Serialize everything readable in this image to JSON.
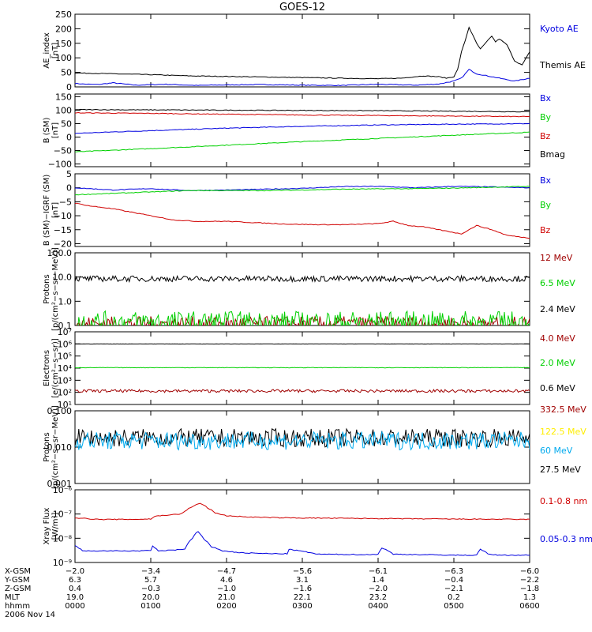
{
  "title": "GOES-12",
  "colors": {
    "black": "#000000",
    "red": "#d00000",
    "green": "#00d000",
    "blue": "#0000e0",
    "darkred": "#a00000",
    "yellow": "#ffee00",
    "cyan": "#00aaee"
  },
  "chart_data": [
    {
      "type": "line",
      "id": "ae",
      "ylabel": [
        "AE_index",
        "[nT]"
      ],
      "ylim": [
        0,
        250
      ],
      "yscale": "linear",
      "yticks": [
        {
          "v": 0,
          "l": "0"
        },
        {
          "v": 50,
          "l": "50"
        },
        {
          "v": 100,
          "l": "100"
        },
        {
          "v": 150,
          "l": "150"
        },
        {
          "v": 200,
          "l": "200"
        },
        {
          "v": 250,
          "l": "250"
        }
      ],
      "x_range_hours": [
        0,
        6
      ],
      "series": [
        {
          "name": "Kyoto AE",
          "color": "blue",
          "x": [
            0,
            0.1,
            0.3,
            0.5,
            0.8,
            1.2,
            1.6,
            2,
            2.5,
            3,
            3.5,
            4,
            4.5,
            4.8,
            5.0,
            5.1,
            5.2,
            5.3,
            5.4,
            5.6,
            5.8,
            6.0
          ],
          "y": [
            12,
            10,
            8,
            14,
            6,
            9,
            5,
            7,
            8,
            6,
            5,
            9,
            6,
            10,
            20,
            30,
            60,
            45,
            40,
            30,
            20,
            30
          ]
        },
        {
          "name": "Themis AE",
          "color": "black",
          "x": [
            0,
            0.5,
            1,
            1.5,
            2,
            2.5,
            3,
            3.5,
            4,
            4.3,
            4.6,
            4.8,
            4.9,
            5.0,
            5.05,
            5.1,
            5.15,
            5.2,
            5.3,
            5.35,
            5.4,
            5.5,
            5.55,
            5.6,
            5.7,
            5.8,
            5.9,
            6.0
          ],
          "y": [
            48,
            45,
            42,
            38,
            36,
            34,
            32,
            30,
            28,
            30,
            38,
            35,
            30,
            35,
            60,
            120,
            160,
            205,
            150,
            130,
            145,
            175,
            155,
            165,
            145,
            90,
            75,
            120
          ]
        }
      ],
      "labels": [
        {
          "text": "Kyoto AE",
          "color": "blue"
        },
        {
          "text": "Themis AE",
          "color": "black"
        }
      ]
    },
    {
      "type": "line",
      "id": "bsm",
      "ylabel": [
        "B (SM)",
        "[nT]"
      ],
      "ylim": [
        -110,
        160
      ],
      "yscale": "linear",
      "yticks": [
        {
          "v": -100,
          "l": "−100"
        },
        {
          "v": -50,
          "l": "−50"
        },
        {
          "v": 0,
          "l": "0"
        },
        {
          "v": 50,
          "l": "50"
        },
        {
          "v": 100,
          "l": "100"
        },
        {
          "v": 150,
          "l": "150"
        }
      ],
      "series": [
        {
          "name": "Bx",
          "color": "blue",
          "x": [
            0,
            1,
            2,
            3,
            4,
            5,
            6
          ],
          "y": [
            14,
            24,
            33,
            40,
            45,
            48,
            50
          ]
        },
        {
          "name": "By",
          "color": "green",
          "x": [
            0,
            1,
            2,
            3,
            4,
            5,
            6
          ],
          "y": [
            -55,
            -43,
            -30,
            -17,
            -5,
            7,
            18
          ]
        },
        {
          "name": "Bz",
          "color": "red",
          "x": [
            0,
            1,
            2,
            3,
            4,
            5,
            6
          ],
          "y": [
            90,
            88,
            85,
            82,
            80,
            78,
            76
          ]
        },
        {
          "name": "Bmag",
          "color": "black",
          "x": [
            0,
            1,
            2,
            3,
            4,
            5,
            6
          ],
          "y": [
            102,
            101,
            100,
            99,
            98,
            96,
            94
          ]
        }
      ],
      "labels": [
        {
          "text": "Bx",
          "color": "blue"
        },
        {
          "text": "By",
          "color": "green"
        },
        {
          "text": "Bz",
          "color": "red"
        },
        {
          "text": "Bmag",
          "color": "black"
        }
      ]
    },
    {
      "type": "line",
      "id": "bdiff",
      "ylabel": [
        "B (SM)−IGRF (SM)",
        "[nT]"
      ],
      "ylim": [
        -21,
        5
      ],
      "yscale": "linear",
      "yticks": [
        {
          "v": -20,
          "l": "−20"
        },
        {
          "v": -15,
          "l": "−15"
        },
        {
          "v": -10,
          "l": "−10"
        },
        {
          "v": -5,
          "l": "−5"
        },
        {
          "v": 0,
          "l": "0"
        },
        {
          "v": 5,
          "l": "5"
        }
      ],
      "series": [
        {
          "name": "Bx",
          "color": "blue",
          "x": [
            0,
            0.5,
            1,
            1.5,
            2,
            2.5,
            3,
            3.5,
            4,
            4.5,
            5,
            5.5,
            6
          ],
          "y": [
            0,
            -0.8,
            -0.3,
            -1,
            -0.8,
            -0.5,
            -0.2,
            0.4,
            0.5,
            0,
            0.5,
            0.3,
            0
          ]
        },
        {
          "name": "By",
          "color": "green",
          "x": [
            0,
            0.5,
            1,
            1.5,
            2,
            2.5,
            3,
            3.5,
            4,
            4.5,
            5,
            5.5,
            6
          ],
          "y": [
            -2.5,
            -2,
            -1.5,
            -1,
            -1,
            -1,
            -0.8,
            -0.5,
            -0.4,
            -0.3,
            -0.1,
            0.2,
            0.5
          ]
        },
        {
          "name": "Bz",
          "color": "red",
          "x": [
            0,
            0.2,
            0.5,
            0.8,
            1,
            1.3,
            1.6,
            2,
            2.4,
            2.8,
            3.2,
            3.6,
            4,
            4.2,
            4.4,
            4.6,
            4.9,
            5.1,
            5.3,
            5.5,
            5.7,
            6
          ],
          "y": [
            -5.5,
            -6.5,
            -7.5,
            -9,
            -10,
            -11.5,
            -12,
            -12,
            -12.5,
            -13,
            -13.2,
            -13.2,
            -12.8,
            -12,
            -13.5,
            -14,
            -15.5,
            -16.5,
            -13.5,
            -15,
            -17,
            -18
          ]
        }
      ],
      "labels": [
        {
          "text": "Bx",
          "color": "blue"
        },
        {
          "text": "By",
          "color": "green"
        },
        {
          "text": "Bz",
          "color": "red"
        }
      ]
    },
    {
      "type": "line",
      "id": "protons1",
      "ylabel": [
        "Protons",
        "[p/(cm²−s−sr−MeV)]"
      ],
      "ylim": [
        0.1,
        100
      ],
      "yscale": "log",
      "yticks": [
        {
          "v": 0.1,
          "l": "0.1"
        },
        {
          "v": 1,
          "l": "1.0"
        },
        {
          "v": 10,
          "l": "10.0"
        },
        {
          "v": 100,
          "l": "100.0"
        }
      ],
      "series": [
        {
          "name": "12 MeV",
          "color": "darkred",
          "level": 0.12,
          "noise": 0.3
        },
        {
          "name": "6.5 MeV",
          "color": "green",
          "level": 0.14,
          "noise": 0.45
        },
        {
          "name": "2.4 MeV",
          "color": "black",
          "level": 8.5,
          "noise": 0.12
        }
      ],
      "labels": [
        {
          "text": "12 MeV",
          "color": "darkred"
        },
        {
          "text": "6.5 MeV",
          "color": "green"
        },
        {
          "text": "2.4 MeV",
          "color": "black"
        }
      ]
    },
    {
      "type": "line",
      "id": "electrons",
      "ylabel": [
        "Electrons",
        "[e/(cm²−s−sr)]"
      ],
      "ylim": [
        10,
        10000000
      ],
      "yscale": "log",
      "yticks": [
        {
          "v": 10,
          "l": "10¹"
        },
        {
          "v": 100,
          "l": "10²"
        },
        {
          "v": 1000,
          "l": "10³"
        },
        {
          "v": 10000,
          "l": "10⁴"
        },
        {
          "v": 100000,
          "l": "10⁵"
        },
        {
          "v": 1000000,
          "l": "10⁶"
        },
        {
          "v": 10000000,
          "l": "10⁷"
        }
      ],
      "series": [
        {
          "name": "4.0 MeV",
          "color": "darkred",
          "level": 130,
          "noise": 0.12
        },
        {
          "name": "2.0 MeV",
          "color": "green",
          "level": 11000,
          "noise": 0.02
        },
        {
          "name": "0.6 MeV",
          "color": "black",
          "level": 1000000,
          "noise": 0.01
        }
      ],
      "labels": [
        {
          "text": "4.0 MeV",
          "color": "darkred"
        },
        {
          "text": "2.0 MeV",
          "color": "green"
        },
        {
          "text": "0.6 MeV",
          "color": "black"
        }
      ]
    },
    {
      "type": "line",
      "id": "protons2",
      "ylabel": [
        "Protons",
        "[p/(cm²−s−sr−MeV)]"
      ],
      "ylim": [
        0.001,
        0.1
      ],
      "yscale": "log",
      "yticks": [
        {
          "v": 0.001,
          "l": "0.001"
        },
        {
          "v": 0.01,
          "l": "0.010"
        },
        {
          "v": 0.1,
          "l": "0.100"
        }
      ],
      "series": [
        {
          "name": "27.5 MeV",
          "color": "black",
          "level": 0.018,
          "noise": 0.25
        },
        {
          "name": "60 MeV",
          "color": "cyan",
          "level": 0.015,
          "noise": 0.25
        }
      ],
      "labels": [
        {
          "text": "332.5 MeV",
          "color": "darkred"
        },
        {
          "text": "122.5 MeV",
          "color": "yellow"
        },
        {
          "text": "60 MeV",
          "color": "cyan"
        },
        {
          "text": "27.5 MeV",
          "color": "black"
        }
      ]
    },
    {
      "type": "line",
      "id": "xray",
      "ylabel": [
        "Xray  Flux",
        "[W/m²]"
      ],
      "ylim": [
        1e-09,
        1e-06
      ],
      "yscale": "log",
      "yticks": [
        {
          "v": 1e-09,
          "l": "10⁻⁹"
        },
        {
          "v": 1e-08,
          "l": "10⁻⁸"
        },
        {
          "v": 1e-07,
          "l": "10⁻⁷"
        },
        {
          "v": 1e-06,
          "l": "10⁻⁶"
        }
      ],
      "series": [
        {
          "name": "0.1-0.8 nm",
          "color": "red",
          "x": [
            0,
            0.3,
            0.7,
            1.0,
            1.05,
            1.2,
            1.4,
            1.55,
            1.65,
            1.75,
            1.85,
            2.0,
            2.3,
            2.7,
            3.2,
            4,
            5,
            6
          ],
          "y": [
            7e-08,
            6e-08,
            6e-08,
            6.2e-08,
            8e-08,
            9e-08,
            1e-07,
            2e-07,
            2.8e-07,
            1.8e-07,
            1.1e-07,
            8.5e-08,
            7.5e-08,
            7e-08,
            6.8e-08,
            6.5e-08,
            6.2e-08,
            6e-08
          ]
        },
        {
          "name": "0.05-0.3 nm",
          "color": "blue",
          "x": [
            0,
            0.1,
            0.3,
            0.9,
            1.0,
            1.02,
            1.05,
            1.1,
            1.45,
            1.55,
            1.62,
            1.7,
            1.8,
            1.95,
            2.2,
            2.6,
            2.8,
            2.82,
            3.2,
            3.9,
            4.0,
            4.05,
            4.2,
            5.0,
            5.3,
            5.35,
            5.45,
            5.6,
            6
          ],
          "y": [
            5e-09,
            3e-09,
            3e-09,
            3e-09,
            3.2e-09,
            5e-09,
            4e-09,
            3e-09,
            3.5e-09,
            1e-08,
            1.9e-08,
            9e-09,
            4.5e-09,
            3e-09,
            2.5e-09,
            2.3e-09,
            2.3e-09,
            3.5e-09,
            2.2e-09,
            2.1e-09,
            2.2e-09,
            4e-09,
            2.2e-09,
            2e-09,
            2e-09,
            3.6e-09,
            2.2e-09,
            2e-09,
            2e-09
          ]
        }
      ],
      "labels": [
        {
          "text": "0.1-0.8 nm",
          "color": "red"
        },
        {
          "text": "0.05-0.3 nm",
          "color": "blue"
        }
      ]
    }
  ],
  "xaxis": {
    "row_labels": [
      "X-GSM",
      "Y-GSM",
      "Z-GSM",
      "MLT",
      "hhmm",
      "2006 Nov 14"
    ],
    "columns": [
      {
        "x": 0,
        "vals": [
          "−2.0",
          "6.3",
          "0.4",
          "19.0",
          "0000"
        ]
      },
      {
        "x": 1,
        "vals": [
          "−3.4",
          "5.7",
          "−0.3",
          "20.0",
          "0100"
        ]
      },
      {
        "x": 2,
        "vals": [
          "−4.7",
          "4.6",
          "−1.0",
          "21.0",
          "0200"
        ]
      },
      {
        "x": 3,
        "vals": [
          "−5.6",
          "3.1",
          "−1.6",
          "22.1",
          "0300"
        ]
      },
      {
        "x": 4,
        "vals": [
          "−6.1",
          "1.4",
          "−2.0",
          "23.2",
          "0400"
        ]
      },
      {
        "x": 5,
        "vals": [
          "−6.3",
          "−0.4",
          "−2.1",
          "0.2",
          "0500"
        ]
      },
      {
        "x": 6,
        "vals": [
          "−6.0",
          "−2.2",
          "−1.8",
          "1.3",
          "0600"
        ]
      }
    ]
  }
}
